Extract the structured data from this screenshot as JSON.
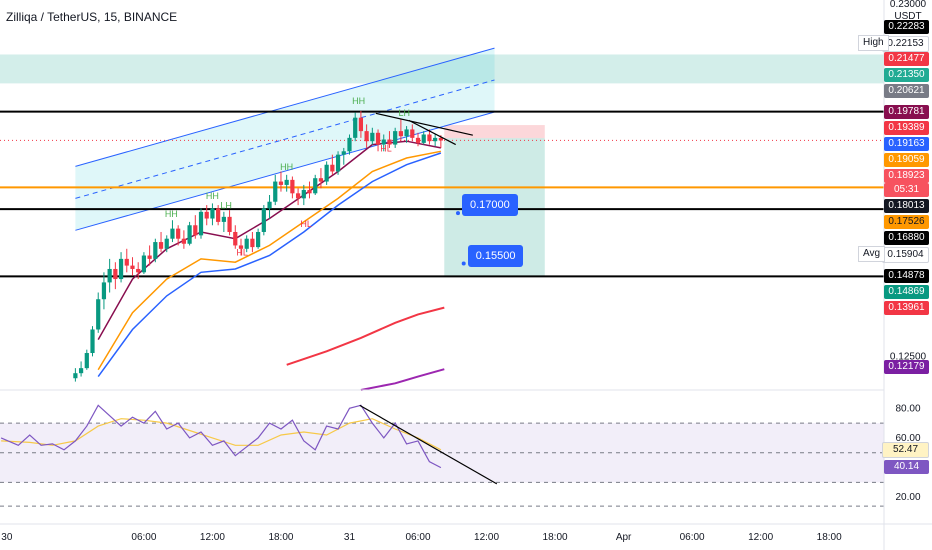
{
  "header": {
    "symbol": "Zilliqa / TetherUS, 15, BINANCE"
  },
  "axis": {
    "currency": "USDT",
    "top_partial": "0.23000",
    "price_ticks": [
      {
        "value": 0.125,
        "label": "0.12500"
      }
    ],
    "rsi_ticks": [
      {
        "value": 80,
        "label": "80.00"
      },
      {
        "value": 60,
        "label": "60.00"
      },
      {
        "value": 20,
        "label": "20.00"
      }
    ],
    "time_ticks": [
      {
        "t": -6,
        "label": "30"
      },
      {
        "t": 6,
        "label": "06:00"
      },
      {
        "t": 12,
        "label": "12:00"
      },
      {
        "t": 18,
        "label": "18:00"
      },
      {
        "t": 24,
        "label": "31"
      },
      {
        "t": 30,
        "label": "06:00"
      },
      {
        "t": 36,
        "label": "12:00"
      },
      {
        "t": 42,
        "label": "18:00"
      },
      {
        "t": 48,
        "label": "Apr"
      },
      {
        "t": 54,
        "label": "06:00"
      },
      {
        "t": 60,
        "label": "12:00"
      },
      {
        "t": 66,
        "label": "18:00"
      }
    ]
  },
  "price_labels": [
    {
      "value": 0.22283,
      "text": "0.22283",
      "bg": "#000000",
      "fg": "#ffffff"
    },
    {
      "value": 0.22153,
      "text": "0.22153",
      "bg": "#ffffff",
      "fg": "#131722",
      "tag": "High"
    },
    {
      "value": 0.21477,
      "text": "0.21477",
      "bg": "#f23645",
      "fg": "#ffffff"
    },
    {
      "value": 0.2135,
      "text": "0.21350",
      "bg": "#22ab94",
      "fg": "#ffffff"
    },
    {
      "value": 0.20621,
      "text": "0.20621",
      "bg": "#787b86",
      "fg": "#ffffff"
    },
    {
      "value": 0.19781,
      "text": "0.19781",
      "bg": "#880e4f",
      "fg": "#ffffff"
    },
    {
      "value": 0.19389,
      "text": "0.19389",
      "bg": "#f23645",
      "fg": "#ffffff"
    },
    {
      "value": 0.19163,
      "text": "0.19163",
      "bg": "#2962ff",
      "fg": "#ffffff"
    },
    {
      "value": 0.19059,
      "text": "0.19059",
      "bg": "#ff9800",
      "fg": "#ffffff"
    },
    {
      "value": 0.18923,
      "text": "0.18923",
      "bg": "#f7525f",
      "fg": "#ffffff",
      "sub": "05:31"
    },
    {
      "value": 0.18013,
      "text": "0.18013",
      "bg": "#131722",
      "fg": "#ffffff"
    },
    {
      "value": 0.17526,
      "text": "0.17526",
      "bg": "#ff9800",
      "fg": "#131722"
    },
    {
      "value": 0.1688,
      "text": "0.16880",
      "bg": "#000000",
      "fg": "#ffffff"
    },
    {
      "value": 0.15904,
      "text": "0.15904",
      "bg": "#ffffff",
      "fg": "#131722",
      "tag": "Avg"
    },
    {
      "value": 0.14878,
      "text": "0.14878",
      "bg": "#000000",
      "fg": "#ffffff"
    },
    {
      "value": 0.14869,
      "text": "0.14869",
      "bg": "#089981",
      "fg": "#ffffff"
    },
    {
      "value": 0.13961,
      "text": "0.13961",
      "bg": "#f23645",
      "fg": "#ffffff"
    },
    {
      "value": 0.12179,
      "text": "0.12179",
      "bg": "#7b1fa2",
      "fg": "#ffffff"
    }
  ],
  "rsi_labels": [
    {
      "value": 52.47,
      "text": "52.47",
      "bg": "#fff3c4",
      "fg": "#131722"
    },
    {
      "value": 40.14,
      "text": "40.14",
      "bg": "#7e57c2",
      "fg": "#ffffff"
    }
  ],
  "targets": [
    {
      "value": 0.17,
      "text": "0.17000",
      "t": 33.5
    },
    {
      "value": 0.155,
      "text": "0.15500",
      "t": 34.0
    }
  ],
  "annotations": [
    {
      "t": 24.8,
      "value": 0.2,
      "text": "HH"
    },
    {
      "t": 28.8,
      "value": 0.1965,
      "text": "LH"
    },
    {
      "t": 8.4,
      "value": 0.1665,
      "text": "HH"
    },
    {
      "t": 12.0,
      "value": 0.1718,
      "text": "HH"
    },
    {
      "t": 13.2,
      "value": 0.169,
      "text": "LH"
    },
    {
      "t": 18.5,
      "value": 0.1805,
      "text": "HH"
    },
    {
      "t": 14.6,
      "value": 0.155,
      "text": "HL"
    },
    {
      "t": 20.2,
      "value": 0.1635,
      "text": "HL"
    },
    {
      "t": 27.2,
      "value": 0.186,
      "text": "HL"
    }
  ],
  "chart_data": {
    "type": "candlestick",
    "title": "Zilliqa / TetherUS, 15, BINANCE",
    "ylim": [
      0.115,
      0.231
    ],
    "xlim": [
      -6.6,
      70.8
    ],
    "rsi_ylim": [
      8,
      91
    ],
    "levels": [
      0.19781,
      0.17526,
      0.1688,
      0.14878
    ],
    "last_price": 0.18923,
    "zones": [
      {
        "from": 0.2062,
        "to": 0.2148,
        "color": "#22ab94"
      },
      {
        "t_from": 32.3,
        "t_to": 41.1,
        "from": 0.1899,
        "to": 0.1938,
        "color": "#f23645"
      },
      {
        "t_from": 32.3,
        "t_to": 41.1,
        "from": 0.1488,
        "to": 0.1899,
        "color": "#089981"
      }
    ],
    "channel": {
      "lower": [
        [
          0,
          0.1625
        ],
        [
          36.7,
          0.1977
        ]
      ],
      "upper": [
        [
          0,
          0.1815
        ],
        [
          36.7,
          0.2167
        ]
      ],
      "middle": [
        [
          0,
          0.172
        ],
        [
          36.7,
          0.2072
        ]
      ]
    },
    "trendlines": [
      {
        "from": [
          26.3,
          0.1973
        ],
        "to": [
          34.8,
          0.1908
        ]
      },
      {
        "from": [
          29.2,
          0.1952
        ],
        "to": [
          33.3,
          0.188
        ]
      }
    ],
    "candles": [
      {
        "t": 0,
        "o": 0.1185,
        "h": 0.1215,
        "l": 0.1175,
        "c": 0.12
      },
      {
        "t": 0.5,
        "o": 0.12,
        "h": 0.1235,
        "l": 0.119,
        "c": 0.1215
      },
      {
        "t": 1,
        "o": 0.1215,
        "h": 0.127,
        "l": 0.121,
        "c": 0.126
      },
      {
        "t": 1.5,
        "o": 0.126,
        "h": 0.134,
        "l": 0.125,
        "c": 0.133
      },
      {
        "t": 2,
        "o": 0.133,
        "h": 0.144,
        "l": 0.132,
        "c": 0.142
      },
      {
        "t": 2.5,
        "o": 0.142,
        "h": 0.15,
        "l": 0.139,
        "c": 0.147
      },
      {
        "t": 3,
        "o": 0.147,
        "h": 0.154,
        "l": 0.144,
        "c": 0.151
      },
      {
        "t": 3.5,
        "o": 0.151,
        "h": 0.153,
        "l": 0.145,
        "c": 0.148
      },
      {
        "t": 4,
        "o": 0.148,
        "h": 0.156,
        "l": 0.147,
        "c": 0.154
      },
      {
        "t": 4.5,
        "o": 0.154,
        "h": 0.157,
        "l": 0.15,
        "c": 0.152
      },
      {
        "t": 5,
        "o": 0.152,
        "h": 0.1545,
        "l": 0.149,
        "c": 0.151
      },
      {
        "t": 5.5,
        "o": 0.151,
        "h": 0.153,
        "l": 0.148,
        "c": 0.15
      },
      {
        "t": 6,
        "o": 0.15,
        "h": 0.156,
        "l": 0.1495,
        "c": 0.155
      },
      {
        "t": 6.5,
        "o": 0.155,
        "h": 0.158,
        "l": 0.152,
        "c": 0.154
      },
      {
        "t": 7,
        "o": 0.154,
        "h": 0.16,
        "l": 0.153,
        "c": 0.159
      },
      {
        "t": 7.5,
        "o": 0.159,
        "h": 0.162,
        "l": 0.156,
        "c": 0.157
      },
      {
        "t": 8,
        "o": 0.157,
        "h": 0.161,
        "l": 0.156,
        "c": 0.16
      },
      {
        "t": 8.5,
        "o": 0.16,
        "h": 0.1655,
        "l": 0.159,
        "c": 0.163
      },
      {
        "t": 9,
        "o": 0.163,
        "h": 0.164,
        "l": 0.158,
        "c": 0.16
      },
      {
        "t": 9.5,
        "o": 0.16,
        "h": 0.1625,
        "l": 0.157,
        "c": 0.1585
      },
      {
        "t": 10,
        "o": 0.1585,
        "h": 0.165,
        "l": 0.158,
        "c": 0.164
      },
      {
        "t": 10.5,
        "o": 0.164,
        "h": 0.167,
        "l": 0.16,
        "c": 0.161
      },
      {
        "t": 11,
        "o": 0.161,
        "h": 0.169,
        "l": 0.16,
        "c": 0.168
      },
      {
        "t": 11.5,
        "o": 0.168,
        "h": 0.17,
        "l": 0.164,
        "c": 0.166
      },
      {
        "t": 12,
        "o": 0.166,
        "h": 0.1705,
        "l": 0.164,
        "c": 0.169
      },
      {
        "t": 12.5,
        "o": 0.169,
        "h": 0.17,
        "l": 0.164,
        "c": 0.165
      },
      {
        "t": 13,
        "o": 0.165,
        "h": 0.168,
        "l": 0.162,
        "c": 0.1665
      },
      {
        "t": 13.5,
        "o": 0.1665,
        "h": 0.1685,
        "l": 0.161,
        "c": 0.162
      },
      {
        "t": 14,
        "o": 0.162,
        "h": 0.164,
        "l": 0.157,
        "c": 0.158
      },
      {
        "t": 14.5,
        "o": 0.158,
        "h": 0.16,
        "l": 0.155,
        "c": 0.157
      },
      {
        "t": 15,
        "o": 0.157,
        "h": 0.161,
        "l": 0.156,
        "c": 0.16
      },
      {
        "t": 15.5,
        "o": 0.16,
        "h": 0.162,
        "l": 0.156,
        "c": 0.1575
      },
      {
        "t": 16,
        "o": 0.1575,
        "h": 0.163,
        "l": 0.157,
        "c": 0.162
      },
      {
        "t": 16.5,
        "o": 0.162,
        "h": 0.17,
        "l": 0.161,
        "c": 0.169
      },
      {
        "t": 17,
        "o": 0.169,
        "h": 0.173,
        "l": 0.166,
        "c": 0.171
      },
      {
        "t": 17.5,
        "o": 0.171,
        "h": 0.179,
        "l": 0.17,
        "c": 0.177
      },
      {
        "t": 18,
        "o": 0.177,
        "h": 0.18,
        "l": 0.174,
        "c": 0.176
      },
      {
        "t": 18.5,
        "o": 0.176,
        "h": 0.179,
        "l": 0.174,
        "c": 0.1775
      },
      {
        "t": 19,
        "o": 0.1775,
        "h": 0.1785,
        "l": 0.172,
        "c": 0.1735
      },
      {
        "t": 19.5,
        "o": 0.1735,
        "h": 0.175,
        "l": 0.17,
        "c": 0.172
      },
      {
        "t": 20,
        "o": 0.172,
        "h": 0.176,
        "l": 0.17,
        "c": 0.1745
      },
      {
        "t": 20.5,
        "o": 0.1745,
        "h": 0.177,
        "l": 0.172,
        "c": 0.1735
      },
      {
        "t": 21,
        "o": 0.1735,
        "h": 0.179,
        "l": 0.173,
        "c": 0.178
      },
      {
        "t": 21.5,
        "o": 0.178,
        "h": 0.181,
        "l": 0.175,
        "c": 0.177
      },
      {
        "t": 22,
        "o": 0.177,
        "h": 0.183,
        "l": 0.176,
        "c": 0.182
      },
      {
        "t": 22.5,
        "o": 0.182,
        "h": 0.185,
        "l": 0.179,
        "c": 0.18
      },
      {
        "t": 23,
        "o": 0.18,
        "h": 0.186,
        "l": 0.179,
        "c": 0.185
      },
      {
        "t": 23.5,
        "o": 0.185,
        "h": 0.187,
        "l": 0.182,
        "c": 0.186
      },
      {
        "t": 24,
        "o": 0.186,
        "h": 0.191,
        "l": 0.185,
        "c": 0.19
      },
      {
        "t": 24.5,
        "o": 0.19,
        "h": 0.1975,
        "l": 0.189,
        "c": 0.196
      },
      {
        "t": 25,
        "o": 0.196,
        "h": 0.198,
        "l": 0.19,
        "c": 0.192
      },
      {
        "t": 25.5,
        "o": 0.192,
        "h": 0.194,
        "l": 0.187,
        "c": 0.189
      },
      {
        "t": 26,
        "o": 0.189,
        "h": 0.193,
        "l": 0.188,
        "c": 0.1915
      },
      {
        "t": 26.5,
        "o": 0.1915,
        "h": 0.1925,
        "l": 0.186,
        "c": 0.188
      },
      {
        "t": 27,
        "o": 0.188,
        "h": 0.191,
        "l": 0.186,
        "c": 0.1895
      },
      {
        "t": 27.5,
        "o": 0.1895,
        "h": 0.192,
        "l": 0.187,
        "c": 0.188
      },
      {
        "t": 28,
        "o": 0.188,
        "h": 0.193,
        "l": 0.187,
        "c": 0.192
      },
      {
        "t": 28.5,
        "o": 0.192,
        "h": 0.1955,
        "l": 0.189,
        "c": 0.1905
      },
      {
        "t": 29,
        "o": 0.1905,
        "h": 0.1935,
        "l": 0.1885,
        "c": 0.1925
      },
      {
        "t": 29.5,
        "o": 0.1925,
        "h": 0.194,
        "l": 0.189,
        "c": 0.19
      },
      {
        "t": 30,
        "o": 0.19,
        "h": 0.1915,
        "l": 0.1875,
        "c": 0.1885
      },
      {
        "t": 30.5,
        "o": 0.1885,
        "h": 0.192,
        "l": 0.188,
        "c": 0.191
      },
      {
        "t": 31,
        "o": 0.191,
        "h": 0.1925,
        "l": 0.188,
        "c": 0.189
      },
      {
        "t": 31.5,
        "o": 0.189,
        "h": 0.191,
        "l": 0.1875,
        "c": 0.19
      },
      {
        "t": 32,
        "o": 0.19,
        "h": 0.1908,
        "l": 0.187,
        "c": 0.1892
      }
    ],
    "ema_short": [
      [
        2,
        0.13
      ],
      [
        5,
        0.148
      ],
      [
        8,
        0.157
      ],
      [
        11,
        0.162
      ],
      [
        14,
        0.16
      ],
      [
        17,
        0.166
      ],
      [
        20,
        0.173
      ],
      [
        23,
        0.18
      ],
      [
        26,
        0.188
      ],
      [
        29,
        0.189
      ],
      [
        32,
        0.187
      ]
    ],
    "ema_mid": [
      [
        2,
        0.121
      ],
      [
        5,
        0.138
      ],
      [
        8,
        0.148
      ],
      [
        11,
        0.154
      ],
      [
        14,
        0.153
      ],
      [
        17,
        0.158
      ],
      [
        20,
        0.165
      ],
      [
        23,
        0.172
      ],
      [
        26,
        0.18
      ],
      [
        29,
        0.184
      ],
      [
        32,
        0.186
      ]
    ],
    "ema_long": [
      [
        2,
        0.119
      ],
      [
        5,
        0.133
      ],
      [
        8,
        0.143
      ],
      [
        11,
        0.15
      ],
      [
        14,
        0.151
      ],
      [
        17,
        0.155
      ],
      [
        20,
        0.162
      ],
      [
        23,
        0.17
      ],
      [
        26,
        0.177
      ],
      [
        29,
        0.182
      ],
      [
        32,
        0.1855
      ]
    ],
    "ema_200": [
      [
        18.5,
        0.1225
      ],
      [
        22,
        0.1265
      ],
      [
        25,
        0.1305
      ],
      [
        28,
        0.135
      ],
      [
        30,
        0.1375
      ],
      [
        32.3,
        0.1395
      ]
    ],
    "ema_500": [
      [
        25,
        0.115
      ],
      [
        28,
        0.117
      ],
      [
        30,
        0.119
      ],
      [
        32.3,
        0.1212
      ]
    ],
    "rsi_levels": [
      70,
      50,
      30
    ],
    "rsi": [
      [
        -6.5,
        60
      ],
      [
        -5,
        55
      ],
      [
        -4,
        62
      ],
      [
        -3,
        55
      ],
      [
        -2,
        56
      ],
      [
        -1,
        52
      ],
      [
        0,
        58
      ],
      [
        1,
        68
      ],
      [
        2,
        82
      ],
      [
        3,
        75
      ],
      [
        4,
        68
      ],
      [
        5,
        74
      ],
      [
        6,
        70
      ],
      [
        7,
        78
      ],
      [
        8,
        66
      ],
      [
        9,
        70
      ],
      [
        10,
        60
      ],
      [
        11,
        64
      ],
      [
        12,
        55
      ],
      [
        13,
        58
      ],
      [
        14,
        48
      ],
      [
        15,
        54
      ],
      [
        16,
        60
      ],
      [
        17,
        70
      ],
      [
        18,
        66
      ],
      [
        19,
        72
      ],
      [
        20,
        58
      ],
      [
        21,
        52
      ],
      [
        22,
        68
      ],
      [
        23,
        66
      ],
      [
        24,
        80
      ],
      [
        25,
        82
      ],
      [
        26,
        70
      ],
      [
        27,
        60
      ],
      [
        28,
        70
      ],
      [
        29,
        56
      ],
      [
        30,
        58
      ],
      [
        31,
        44
      ],
      [
        32,
        40
      ]
    ],
    "rsi_ma": [
      [
        -6.5,
        58
      ],
      [
        -4,
        57
      ],
      [
        -2,
        55
      ],
      [
        0,
        58
      ],
      [
        2,
        68
      ],
      [
        4,
        73
      ],
      [
        6,
        72
      ],
      [
        8,
        70
      ],
      [
        10,
        65
      ],
      [
        12,
        60
      ],
      [
        14,
        55
      ],
      [
        16,
        55
      ],
      [
        18,
        62
      ],
      [
        20,
        64
      ],
      [
        22,
        62
      ],
      [
        24,
        70
      ],
      [
        26,
        73
      ],
      [
        28,
        66
      ],
      [
        30,
        60
      ],
      [
        32,
        52
      ]
    ],
    "rsi_trendline": {
      "from": [
        24.9,
        82
      ],
      "to": [
        36.9,
        29
      ]
    }
  }
}
